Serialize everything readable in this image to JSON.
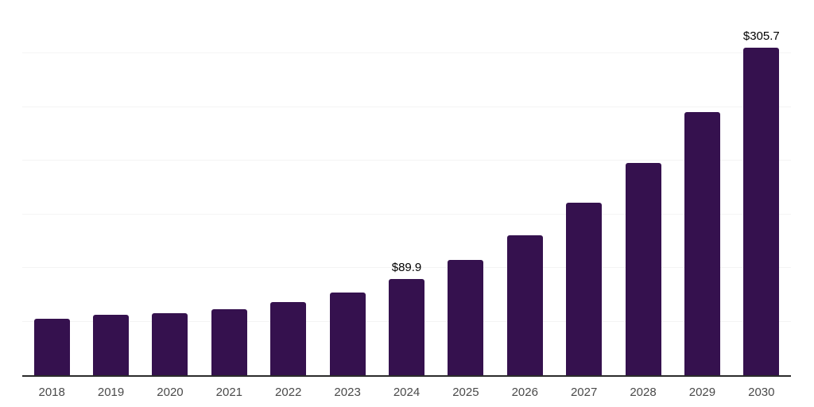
{
  "chart_data": {
    "type": "bar",
    "title": "",
    "xlabel": "",
    "ylabel": "",
    "categories": [
      "2018",
      "2019",
      "2020",
      "2021",
      "2022",
      "2023",
      "2024",
      "2025",
      "2026",
      "2027",
      "2028",
      "2029",
      "2030"
    ],
    "values": [
      52.3,
      56.6,
      58.1,
      61.6,
      68.5,
      77.2,
      89.9,
      107.8,
      130.5,
      161.0,
      198.0,
      245.5,
      305.7
    ],
    "data_labels": [
      "",
      "",
      "",
      "",
      "",
      "",
      "$89.9",
      "",
      "",
      "",
      "",
      "",
      "$305.7"
    ],
    "ylim": [
      0,
      350
    ],
    "grid_interval": 50,
    "grid": "on",
    "legend": "none",
    "y_tick_labels_visible": false,
    "colors": {
      "bar": "#35114E",
      "axis_line": "#2b2b2b",
      "grid_line": "#f4f4f4",
      "grid_line_top": "#e6e6e6",
      "tick_label": "#4a4a4a",
      "data_label": "#000000",
      "background": "#ffffff"
    }
  }
}
